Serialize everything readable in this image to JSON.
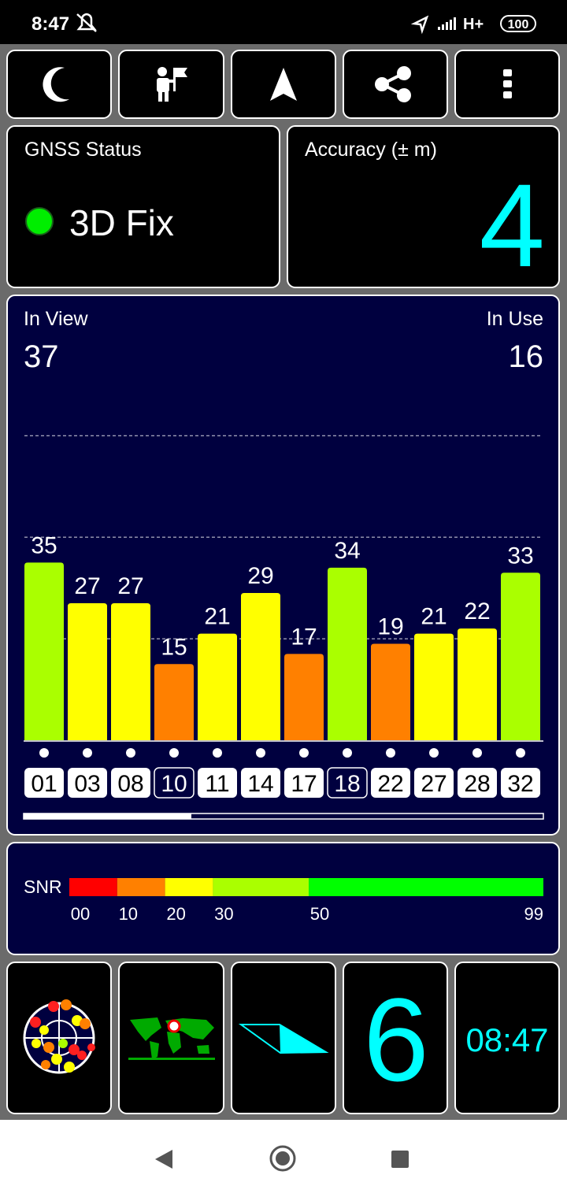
{
  "status_bar": {
    "time": "8:47",
    "network": "H+",
    "battery": "100"
  },
  "gnss_status": {
    "title": "GNSS Status",
    "fix": "3D Fix"
  },
  "accuracy": {
    "title": "Accuracy (± m)",
    "value": 4
  },
  "satellites": {
    "in_view_label": "In View",
    "in_view": 37,
    "in_use_label": "In Use",
    "in_use": 16
  },
  "chart_data": {
    "type": "bar",
    "categories": [
      "01",
      "03",
      "08",
      "10",
      "11",
      "14",
      "17",
      "18",
      "22",
      "27",
      "28",
      "32"
    ],
    "values": [
      35,
      27,
      27,
      15,
      21,
      29,
      17,
      34,
      19,
      21,
      22,
      33
    ],
    "in_use": [
      true,
      true,
      true,
      false,
      true,
      true,
      true,
      false,
      true,
      true,
      true,
      true
    ],
    "ylim": [
      0,
      65
    ],
    "yticks": [
      20,
      40,
      60
    ],
    "grid": true
  },
  "snr_scale": {
    "label": "SNR",
    "ticks": [
      {
        "value": 0,
        "label": "00"
      },
      10,
      20,
      30,
      50,
      99
    ],
    "colors": [
      "#ff0000",
      "#ff8000",
      "#ffff00",
      "#aaff00",
      "#00ff00"
    ]
  },
  "bottom_tiles": {
    "big_number": 6,
    "clock": "08:47"
  }
}
